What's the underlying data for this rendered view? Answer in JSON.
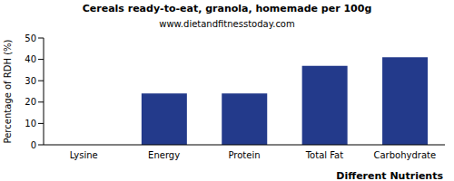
{
  "chart_data": {
    "type": "bar",
    "title": "Cereals ready-to-eat, granola, homemade per 100g",
    "subtitle": "www.dietandfitnesstoday.com",
    "x_label": "Different Nutrients",
    "y_label": "Percentage of RDH (%)",
    "categories": [
      "Lysine",
      "Energy",
      "Protein",
      "Total Fat",
      "Carbohydrate"
    ],
    "values": [
      0,
      24,
      24,
      37,
      41
    ],
    "color": "#233a8b",
    "ylim": [
      0,
      50
    ],
    "yticks": [
      0,
      10,
      20,
      30,
      40,
      50
    ],
    "grid": false
  }
}
